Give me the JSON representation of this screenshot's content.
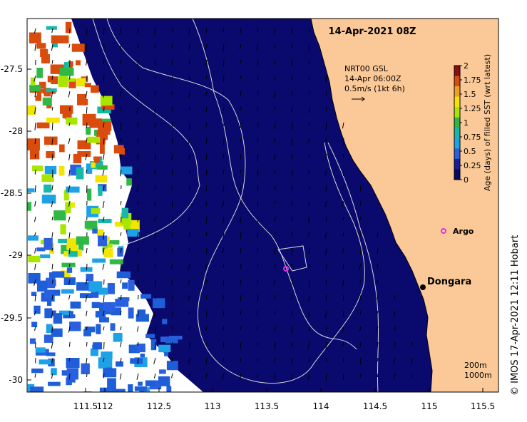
{
  "title": "14-Apr-2021 08Z",
  "current_legend": {
    "line1": "NRT00 GSL",
    "line2": "14-Apr 06:00Z",
    "line3": "0.5m/s (1kt 6h)"
  },
  "colorbar": {
    "label": "Age (days) of filled SST (wrt latest)",
    "ticks": [
      "2",
      "1.75",
      "1.5",
      "1.25",
      "1",
      "0.75",
      "0.5",
      "0.25",
      "0"
    ],
    "colors": [
      "#8b0d0d",
      "#d94c0e",
      "#f0a020",
      "#f2e600",
      "#a8e600",
      "#2fb845",
      "#18b8a8",
      "#1ea2e6",
      "#2a5fe0",
      "#1b1f9c",
      "#0a0a64"
    ]
  },
  "places": {
    "argo": "Argo",
    "dongara": "Dongara"
  },
  "scale": {
    "depth1": "200m",
    "depth2": "1000m"
  },
  "credit": "© IMOS 17-Apr-2021 12:11 Hobart",
  "axes": {
    "yticks": [
      "-27.5",
      "-28",
      "-28.5",
      "-29",
      "-29.5",
      "-30"
    ],
    "xticks": [
      "111.5",
      "112",
      "112.5",
      "113",
      "113.5",
      "114",
      "114.5",
      "115",
      "115.5"
    ]
  },
  "colors": {
    "ocean": "#0a0a6e",
    "land": "#fbc998",
    "missing": "#ffffff",
    "contour": "#d8d8d8",
    "argo": "#e030e0"
  }
}
